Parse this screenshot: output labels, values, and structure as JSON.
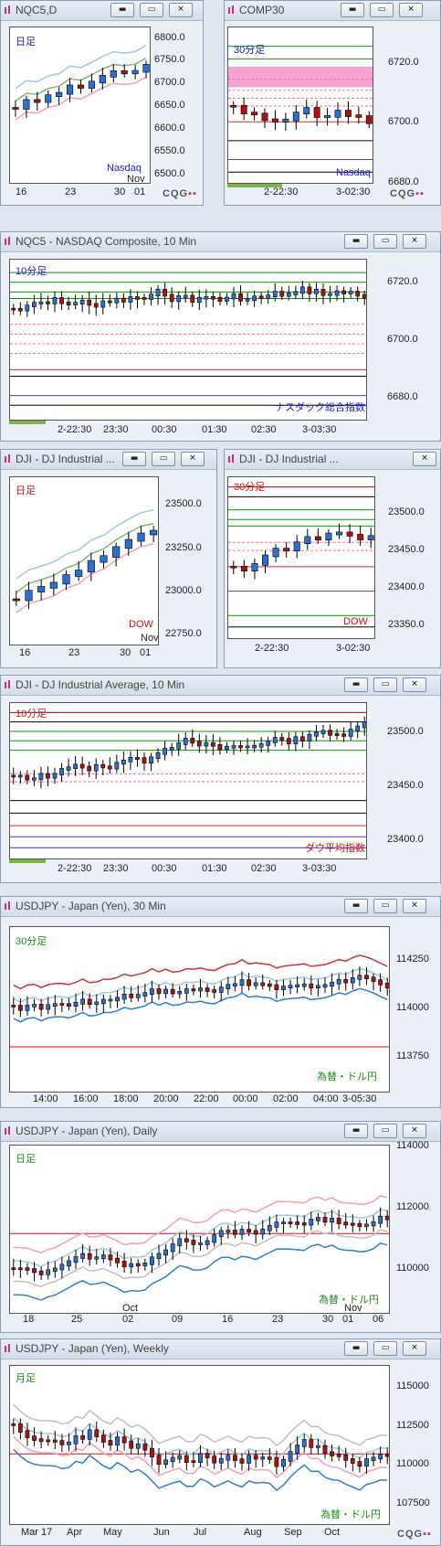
{
  "window_buttons": {
    "minimize": "▬",
    "restore": "▭",
    "close": "✕"
  },
  "brand": {
    "cqg": "CQG"
  },
  "panels": [
    {
      "title": "NQC5,D",
      "period": "日足",
      "period_color": "#1a1acc",
      "name": "Nasdaq",
      "name_color": "#1a1acc",
      "name2": "Nov",
      "yticks": [
        "6800.0",
        "6750.0",
        "6700.0",
        "6650.0",
        "6600.0",
        "6550.0",
        "6500.0"
      ],
      "xticks": [
        "16",
        "23",
        "30",
        "01"
      ]
    },
    {
      "title": "COMP30",
      "period": "30分足",
      "period_color": "#1a1acc",
      "name": "Nasdaq",
      "name_color": "#1a1acc",
      "yticks": [
        "6720.0",
        "6700.0",
        "6680.0"
      ],
      "xticks": [
        "2-22:30",
        "3-02:30"
      ]
    },
    {
      "title": "NQC5 - NASDAQ Composite, 10 Min",
      "period": "10分足",
      "period_color": "#1a1acc",
      "name": "ナスダック総合指数",
      "name_color": "#1a1acc",
      "yticks": [
        "6720.0",
        "6700.0",
        "6680.0"
      ],
      "xticks": [
        "2-22:30",
        "23:30",
        "00:30",
        "01:30",
        "02:30",
        "3-03:30"
      ]
    },
    {
      "title": "DJI - DJ Industrial ...",
      "period": "日足",
      "period_color": "#d01010",
      "name": "DOW",
      "name_color": "#d01010",
      "name2": "Nov",
      "yticks": [
        "23500.0",
        "23250.0",
        "23000.0",
        "22750.0"
      ],
      "xticks": [
        "16",
        "23",
        "30",
        "01"
      ]
    },
    {
      "title": "DJI - DJ Industrial ...",
      "period": "30分足",
      "period_color": "#d01010",
      "name": "DOW",
      "name_color": "#d01010",
      "yticks": [
        "23500.0",
        "23450.0",
        "23400.0",
        "23350.0"
      ],
      "xticks": [
        "2-22:30",
        "3-02:30"
      ]
    },
    {
      "title": "DJI - DJ Industrial Average, 10 Min",
      "period": "10分足",
      "period_color": "#d01010",
      "name": "ダウ平均指数",
      "name_color": "#d01010",
      "yticks": [
        "23500.0",
        "23450.0",
        "23400.0"
      ],
      "xticks": [
        "2-22:30",
        "23:30",
        "00:30",
        "01:30",
        "02:30",
        "3-03:30"
      ]
    },
    {
      "title": "USDJPY - Japan (Yen), 30 Min",
      "period": "30分足",
      "period_color": "#1a8a1a",
      "name": "為替・ドル円",
      "name_color": "#1a8a1a",
      "yticks": [
        "114250",
        "114000",
        "113750"
      ],
      "xticks": [
        "14:00",
        "16:00",
        "18:00",
        "20:00",
        "22:00",
        "00:00",
        "02:00",
        "04:00",
        "3-05:30"
      ]
    },
    {
      "title": "USDJPY - Japan (Yen), Daily",
      "period": "日足",
      "period_color": "#1a8a1a",
      "name": "為替・ドル円",
      "name_color": "#1a8a1a",
      "name2": "Oct",
      "name3": "Nov",
      "yticks": [
        "114000",
        "112000",
        "110000"
      ],
      "xticks": [
        "18",
        "25",
        "02",
        "09",
        "16",
        "23",
        "30",
        "01",
        "06"
      ]
    },
    {
      "title": "USDJPY - Japan (Yen), Weekly",
      "period": "月足",
      "period_color": "#1a8a1a",
      "name": "為替・ドル円",
      "name_color": "#1a8a1a",
      "yticks": [
        "115000",
        "112500",
        "110000",
        "107500"
      ],
      "xticks": [
        "Mar 17",
        "Apr",
        "May",
        "Jun",
        "Jul",
        "Aug",
        "Sep",
        "Oct"
      ]
    }
  ]
}
